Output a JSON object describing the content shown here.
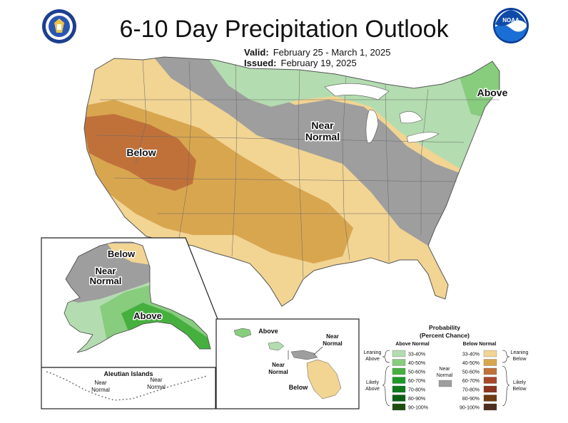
{
  "title": "6-10 Day Precipitation Outlook",
  "valid": {
    "label": "Valid:",
    "value": "February 25 - March 1, 2025"
  },
  "issued": {
    "label": "Issued:",
    "value": "February 19, 2025"
  },
  "logos": {
    "left": "us-department-of-commerce-seal",
    "right": "noaa-logo",
    "right_text": "NOAA"
  },
  "map_labels": {
    "conus_below": "Below",
    "conus_near": "Near",
    "conus_normal": "Normal",
    "conus_above": "Above",
    "ak_below": "Below",
    "ak_near": "Near",
    "ak_normal": "Normal",
    "ak_above": "Above",
    "aleutian_title": "Aleutian Islands",
    "aleutian_near1": "Near",
    "aleutian_normal1": "Normal",
    "aleutian_near2": "Near",
    "aleutian_normal2": "Normal",
    "hi_above": "Above",
    "hi_near1": "Near",
    "hi_normal1": "Normal",
    "hi_near2": "Near",
    "hi_normal2": "Normal",
    "hi_below": "Below"
  },
  "legend": {
    "title": "Probability",
    "subtitle": "(Percent Chance)",
    "above_header": "Above Normal",
    "below_header": "Below Normal",
    "leaning_above_1": "Leaning",
    "leaning_above_2": "Above",
    "likely_above_1": "Likely",
    "likely_above_2": "Above",
    "leaning_below_1": "Leaning",
    "leaning_below_2": "Below",
    "likely_below_1": "Likely",
    "likely_below_2": "Below",
    "near_1": "Near",
    "near_2": "Normal",
    "near_color": "#9e9e9e",
    "above": [
      {
        "label": "33-40%",
        "color": "#b3dcb0"
      },
      {
        "label": "40-50%",
        "color": "#88cc7e"
      },
      {
        "label": "50-60%",
        "color": "#46b03f"
      },
      {
        "label": "60-70%",
        "color": "#1e9927"
      },
      {
        "label": "70-80%",
        "color": "#0f7a1c"
      },
      {
        "label": "80-90%",
        "color": "#0b5f15"
      },
      {
        "label": "90-100%",
        "color": "#1f4d0f"
      }
    ],
    "below": [
      {
        "label": "33-40%",
        "color": "#f2d493"
      },
      {
        "label": "40-50%",
        "color": "#d9a650"
      },
      {
        "label": "50-60%",
        "color": "#c0713a"
      },
      {
        "label": "60-70%",
        "color": "#a8472b"
      },
      {
        "label": "70-80%",
        "color": "#8c3420"
      },
      {
        "label": "80-90%",
        "color": "#6f3a10"
      },
      {
        "label": "90-100%",
        "color": "#4d2e1e"
      }
    ]
  }
}
